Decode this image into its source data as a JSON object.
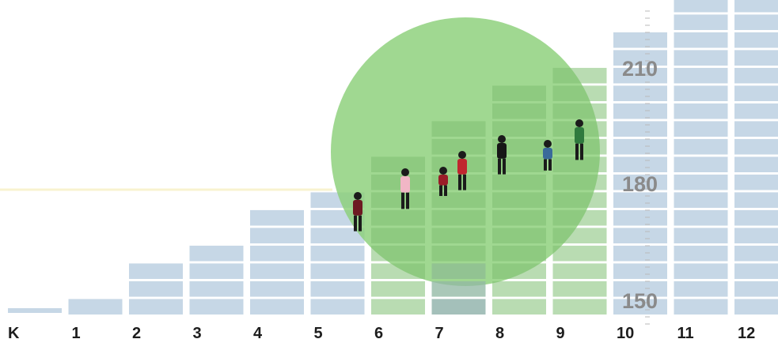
{
  "chart_data": {
    "type": "bar",
    "categories": [
      "K",
      "1",
      "2",
      "3",
      "4",
      "5",
      "6",
      "7",
      "8",
      "9",
      "10",
      "11",
      "12"
    ],
    "values": [
      0,
      1,
      3,
      4,
      6,
      7,
      9,
      11,
      13,
      14,
      16,
      18,
      19
    ],
    "unit_note": "",
    "scale_labels": [
      "210",
      "180",
      "150"
    ],
    "scale_values": [
      210,
      180,
      150
    ],
    "highlighted_categories": [
      "6",
      "7",
      "8",
      "9"
    ],
    "highlight_color": "#8bcf79",
    "bar_color": "#c6d7e6",
    "title": "",
    "xlabel": "",
    "ylabel": ""
  }
}
